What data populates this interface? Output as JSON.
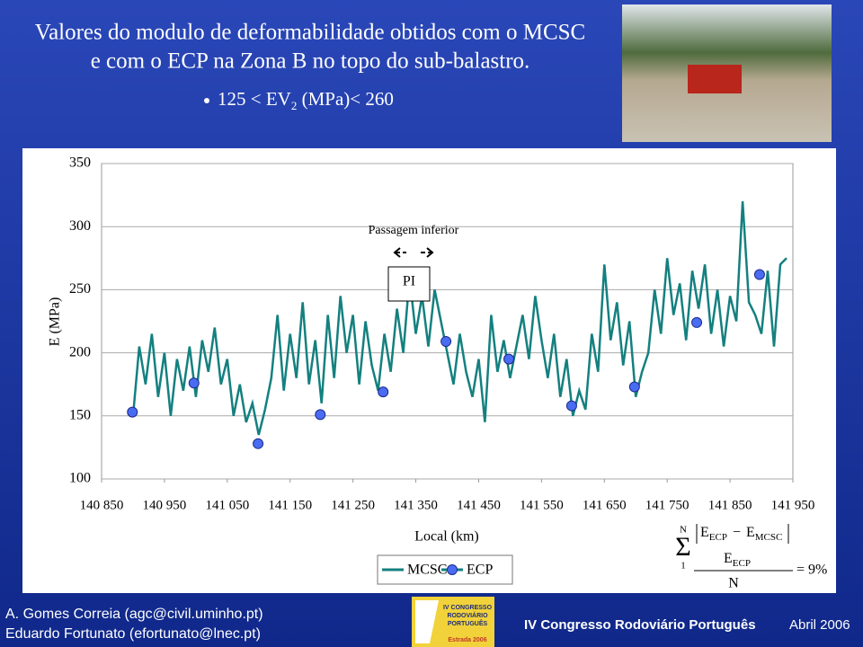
{
  "slide": {
    "title_lines": [
      "Valores do modulo de deformabilidade obtidos com o MCSC",
      "e com o ECP na Zona B no topo do sub-balastro."
    ],
    "bullet": {
      "pre": "125 < EV",
      "sub": "2",
      "post": " (MPa)< 260"
    },
    "formula": {
      "upper": "N",
      "lower": "1",
      "e1": "E",
      "e1sub": "ECP",
      "e2": "E",
      "e2sub": "MCSC",
      "den": "E",
      "densub": "ECP",
      "n": "N",
      "result": "= 9%"
    },
    "footer": {
      "author1": "A. Gomes Correia (agc@civil.uminho.pt)",
      "author2": "Eduardo Fortunato (efortunato@lnec.pt)",
      "event": "IV Congresso Rodoviário Português",
      "date": "Abril 2006",
      "logo1": "IV CONGRESSO",
      "logo2": "RODOVIÁRIO",
      "logo3": "PORTUGUÊS",
      "logo4": "Estrada 2006"
    }
  },
  "chart_data": {
    "type": "line",
    "ylabel": "E (MPa)",
    "xlabel": "Local (km)",
    "annotations": [
      "Passagem inferior",
      "PI"
    ],
    "xlim": [
      140850,
      141950
    ],
    "ylim": [
      100,
      350
    ],
    "grid": true,
    "yticks": [
      100,
      150,
      200,
      250,
      300,
      350
    ],
    "xticks": [
      {
        "value": 140850,
        "label": "140 850"
      },
      {
        "value": 140950,
        "label": "140 950"
      },
      {
        "value": 141050,
        "label": "141 050"
      },
      {
        "value": 141150,
        "label": "141 150"
      },
      {
        "value": 141250,
        "label": "141 250"
      },
      {
        "value": 141350,
        "label": "141 350"
      },
      {
        "value": 141450,
        "label": "141 450"
      },
      {
        "value": 141550,
        "label": "141 550"
      },
      {
        "value": 141650,
        "label": "141 650"
      },
      {
        "value": 141750,
        "label": "141 750"
      },
      {
        "value": 141850,
        "label": "141 850"
      },
      {
        "value": 141950,
        "label": "141 950"
      }
    ],
    "legend": "bottom",
    "series": [
      {
        "name": "MCSC",
        "type": "line",
        "color": "#14807f",
        "x": [
          140900,
          140910,
          140920,
          140930,
          140940,
          140950,
          140960,
          140970,
          140980,
          140990,
          141000,
          141010,
          141020,
          141030,
          141040,
          141050,
          141060,
          141070,
          141080,
          141090,
          141100,
          141110,
          141120,
          141130,
          141140,
          141150,
          141160,
          141170,
          141180,
          141190,
          141200,
          141210,
          141220,
          141230,
          141240,
          141250,
          141260,
          141270,
          141280,
          141290,
          141300,
          141310,
          141320,
          141330,
          141340,
          141350,
          141360,
          141370,
          141380,
          141390,
          141400,
          141410,
          141420,
          141430,
          141440,
          141450,
          141460,
          141470,
          141480,
          141490,
          141500,
          141510,
          141520,
          141530,
          141540,
          141550,
          141560,
          141570,
          141580,
          141590,
          141600,
          141610,
          141620,
          141630,
          141640,
          141650,
          141660,
          141670,
          141680,
          141690,
          141700,
          141710,
          141720,
          141730,
          141740,
          141750,
          141760,
          141770,
          141780,
          141790,
          141800,
          141810,
          141820,
          141830,
          141840,
          141850,
          141860,
          141870,
          141880,
          141890,
          141900,
          141910,
          141920,
          141930,
          141940
        ],
        "values": [
          150,
          205,
          175,
          215,
          165,
          200,
          150,
          195,
          170,
          205,
          165,
          210,
          185,
          220,
          175,
          195,
          150,
          175,
          145,
          160,
          135,
          155,
          180,
          230,
          170,
          215,
          180,
          240,
          175,
          210,
          160,
          230,
          180,
          245,
          200,
          230,
          175,
          225,
          190,
          170,
          215,
          185,
          235,
          200,
          260,
          215,
          245,
          205,
          250,
          225,
          200,
          175,
          215,
          185,
          165,
          195,
          145,
          230,
          185,
          210,
          180,
          205,
          230,
          195,
          245,
          210,
          180,
          215,
          165,
          195,
          150,
          170,
          155,
          215,
          185,
          270,
          210,
          240,
          190,
          225,
          165,
          185,
          200,
          250,
          215,
          275,
          230,
          255,
          210,
          265,
          235,
          270,
          215,
          250,
          205,
          245,
          225,
          320,
          240,
          230,
          215,
          265,
          205,
          270,
          275
        ]
      },
      {
        "name": "ECP",
        "type": "scatter",
        "color": "#4a6cf2",
        "x": [
          140899,
          140997,
          141099,
          141198,
          141298,
          141398,
          141498,
          141598,
          141698,
          141797,
          141897
        ],
        "values": [
          153,
          176,
          128,
          151,
          169,
          209,
          195,
          158,
          173,
          224,
          262
        ]
      }
    ]
  }
}
